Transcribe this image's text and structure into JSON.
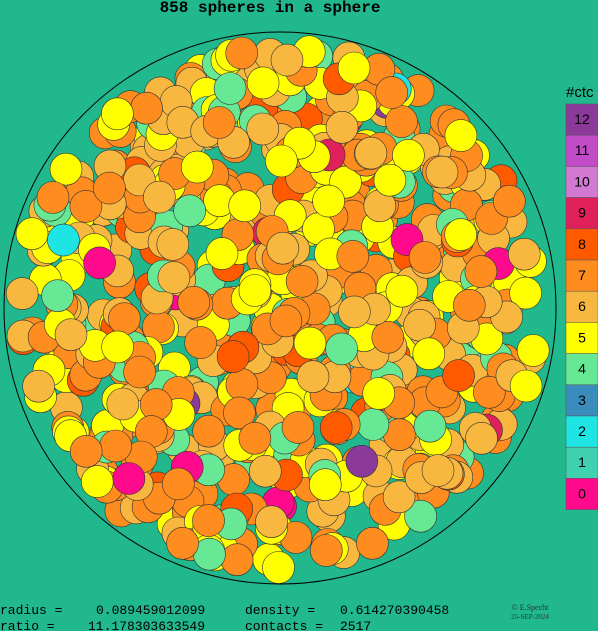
{
  "title": "858 spheres in a sphere",
  "legend": {
    "title": "#ctc",
    "items": [
      {
        "label": "12",
        "color": "#8b3a9a"
      },
      {
        "label": "11",
        "color": "#c24cc8"
      },
      {
        "label": "10",
        "color": "#d27ad2"
      },
      {
        "label": "9",
        "color": "#e0205a"
      },
      {
        "label": "8",
        "color": "#ff5a00"
      },
      {
        "label": "7",
        "color": "#ff8c1e"
      },
      {
        "label": "6",
        "color": "#f8b840"
      },
      {
        "label": "5",
        "color": "#ffff00"
      },
      {
        "label": "4",
        "color": "#66e894"
      },
      {
        "label": "3",
        "color": "#3a8cbc"
      },
      {
        "label": "2",
        "color": "#1ee4e4"
      },
      {
        "label": "1",
        "color": "#40d2b0"
      },
      {
        "label": "0",
        "color": "#ff0a8c"
      }
    ]
  },
  "stats": {
    "radius_label": "radius =",
    "radius": "0.089459012099",
    "density_label": "density  =",
    "density": "0.614270390458",
    "ratio_label": "ratio  =",
    "ratio": "11.178303633549",
    "contacts_label": "contacts =",
    "contacts": "2517"
  },
  "credit": {
    "author": "© E.Specht",
    "date": "25-SEP-2024"
  }
}
